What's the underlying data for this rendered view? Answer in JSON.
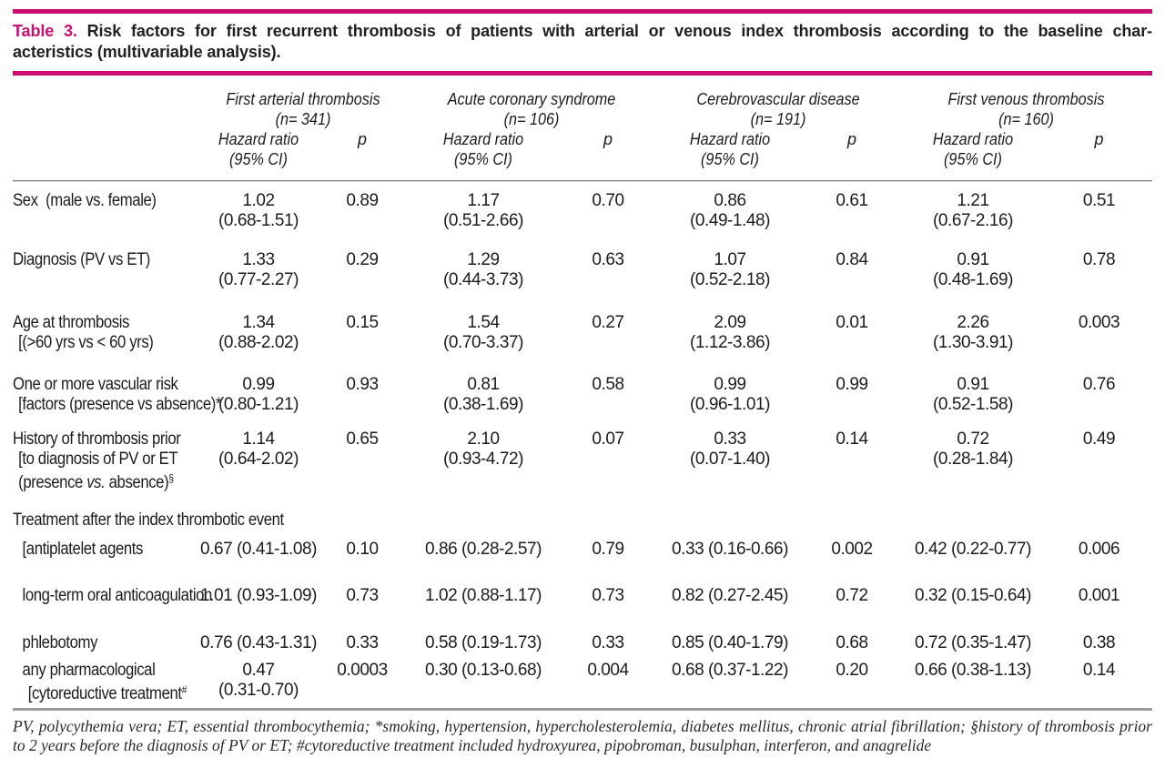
{
  "colors": {
    "accent": "#CB0E72"
  },
  "caption": {
    "label": "Table 3.",
    "line1": "Risk factors for first recurrent thrombosis of patients with arterial or venous index thrombosis according to the baseline char-",
    "line2": "acteristics (multivariable analysis)."
  },
  "header": {
    "groups": [
      {
        "name": "First arterial thrombosis",
        "n": "(n= 341)"
      },
      {
        "name": "Acute coronary syndrome",
        "n": "(n= 106)"
      },
      {
        "name": "Cerebrovascular disease",
        "n": "(n= 191)"
      },
      {
        "name": "First venous thrombosis",
        "n": "(n= 160)"
      }
    ],
    "hr_line1": "Hazard ratio",
    "hr_line2": "(95% CI)",
    "p_label": "p"
  },
  "table": {
    "rows": [
      {
        "type": "data",
        "label": [
          "Sex  (male vs. female)"
        ],
        "cells": [
          [
            "1.02",
            "(0.68-1.51)"
          ],
          "0.89",
          [
            "1.17",
            "(0.51-2.66)"
          ],
          "0.70",
          [
            "0.86",
            "(0.49-1.48)"
          ],
          "0.61",
          [
            "1.21",
            "(0.67-2.16)"
          ],
          "0.51"
        ]
      },
      {
        "type": "data",
        "label": [
          "Diagnosis (PV vs ET)"
        ],
        "cells": [
          [
            "1.33",
            "(0.77-2.27)"
          ],
          "0.29",
          [
            "1.29",
            "(0.44-3.73)"
          ],
          "0.63",
          [
            "1.07",
            "(0.52-2.18)"
          ],
          "0.84",
          [
            "0.91",
            "(0.48-1.69)"
          ],
          "0.78"
        ]
      },
      {
        "type": "data",
        "label": [
          "Age at thrombosis",
          "[(>60 yrs vs < 60 yrs)"
        ],
        "cells": [
          [
            "1.34",
            "(0.88-2.02)"
          ],
          "0.15",
          [
            "1.54",
            "(0.70-3.37)"
          ],
          "0.27",
          [
            "2.09",
            "(1.12-3.86)"
          ],
          "0.01",
          [
            "2.26",
            "(1.30-3.91)"
          ],
          "0.003"
        ]
      },
      {
        "type": "data",
        "label": [
          "One or more vascular risk",
          "[factors (presence vs absence)*"
        ],
        "cells": [
          [
            "0.99",
            "(0.80-1.21)"
          ],
          "0.93",
          [
            "0.81",
            "(0.38-1.69)"
          ],
          "0.58",
          [
            "0.99",
            "(0.96-1.01)"
          ],
          "0.99",
          [
            "0.91",
            "(0.52-1.58)"
          ],
          "0.76"
        ]
      },
      {
        "type": "data",
        "label": [
          "History of thrombosis prior",
          "[to diagnosis of PV or ET",
          [
            {
              "t": "(presence "
            },
            {
              "t": "vs.",
              "s": "i"
            },
            {
              "t": " absence)"
            },
            {
              "t": "§",
              "s": "sup"
            }
          ]
        ],
        "cells": [
          [
            "1.14",
            "(0.64-2.02)"
          ],
          "0.65",
          [
            "2.10",
            "(0.93-4.72)"
          ],
          "0.07",
          [
            "0.33",
            "(0.07-1.40)"
          ],
          "0.14",
          [
            "0.72",
            "(0.28-1.84)"
          ],
          "0.49"
        ]
      },
      {
        "type": "section",
        "label": [
          "Treatment after the index thrombotic event"
        ]
      },
      {
        "type": "data",
        "indent": true,
        "label": [
          "[antiplatelet agents"
        ],
        "cells": [
          [
            "0.67 (0.41-1.08)"
          ],
          "0.10",
          [
            "0.86 (0.28-2.57)"
          ],
          "0.79",
          [
            "0.33 (0.16-0.66)"
          ],
          "0.002",
          [
            "0.42 (0.22-0.77)"
          ],
          "0.006"
        ]
      },
      {
        "type": "data",
        "indent": true,
        "label": [
          "long-term oral anticoagulation"
        ],
        "cells": [
          [
            "1.01 (0.93-1.09)"
          ],
          "0.73",
          [
            "1.02 (0.88-1.17)"
          ],
          "0.73",
          [
            "0.82 (0.27-2.45)"
          ],
          "0.72",
          [
            "0.32 (0.15-0.64)"
          ],
          "0.001"
        ]
      },
      {
        "type": "data",
        "indent": true,
        "label": [
          "phlebotomy"
        ],
        "cells": [
          [
            "0.76 (0.43-1.31)"
          ],
          "0.33",
          [
            "0.58 (0.19-1.73)"
          ],
          "0.33",
          [
            "0.85 (0.40-1.79)"
          ],
          "0.68",
          [
            "0.72 (0.35-1.47)"
          ],
          "0.38"
        ]
      },
      {
        "type": "data",
        "indent": true,
        "label": [
          "any pharmacological",
          [
            {
              "t": "[cytoreductive treatment"
            },
            {
              "t": "#",
              "s": "sup"
            }
          ]
        ],
        "cells": [
          [
            "0.47",
            "(0.31-0.70)"
          ],
          "0.0003",
          [
            "0.30 (0.13-0.68)"
          ],
          "0.004",
          [
            "0.68 (0.37-1.22)"
          ],
          "0.20",
          [
            "0.66 (0.38-1.13)"
          ],
          "0.14"
        ]
      }
    ]
  },
  "footnote": "PV, polycythemia vera; ET, essential thrombocythemia; *smoking, hypertension, hypercholesterolemia, diabetes mellitus, chronic atrial fibrillation; §history of thrombosis prior to 2 years before the diagnosis of PV or ET; #cytoreductive treatment included hydroxyurea, pipobroman, busulphan, interferon, and anagrelide"
}
